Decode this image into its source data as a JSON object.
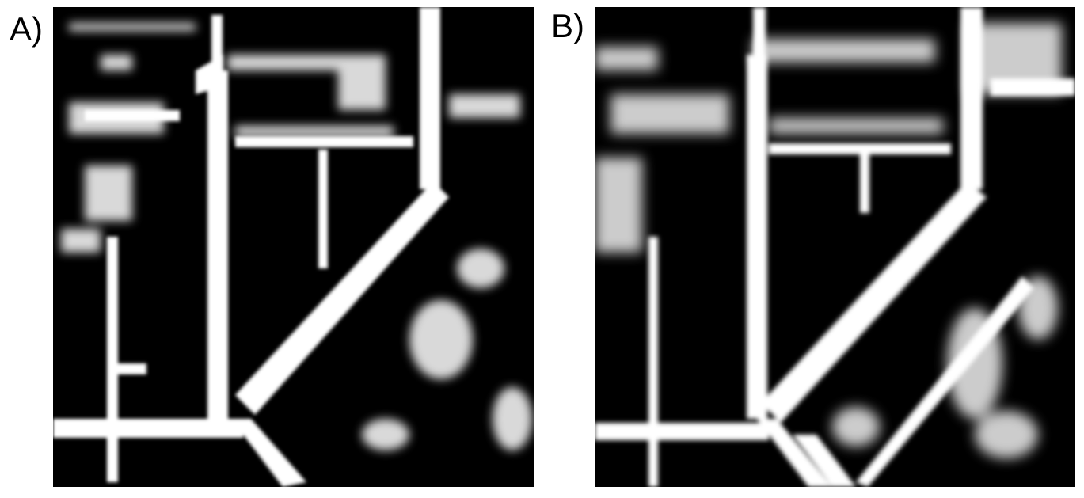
{
  "figure": {
    "panels": [
      {
        "label": "A)",
        "image": "road-segmentation-map"
      },
      {
        "label": "B)",
        "image": "road-segmentation-map"
      }
    ],
    "colors": {
      "background": "#000000",
      "road": "#ffffff"
    }
  }
}
